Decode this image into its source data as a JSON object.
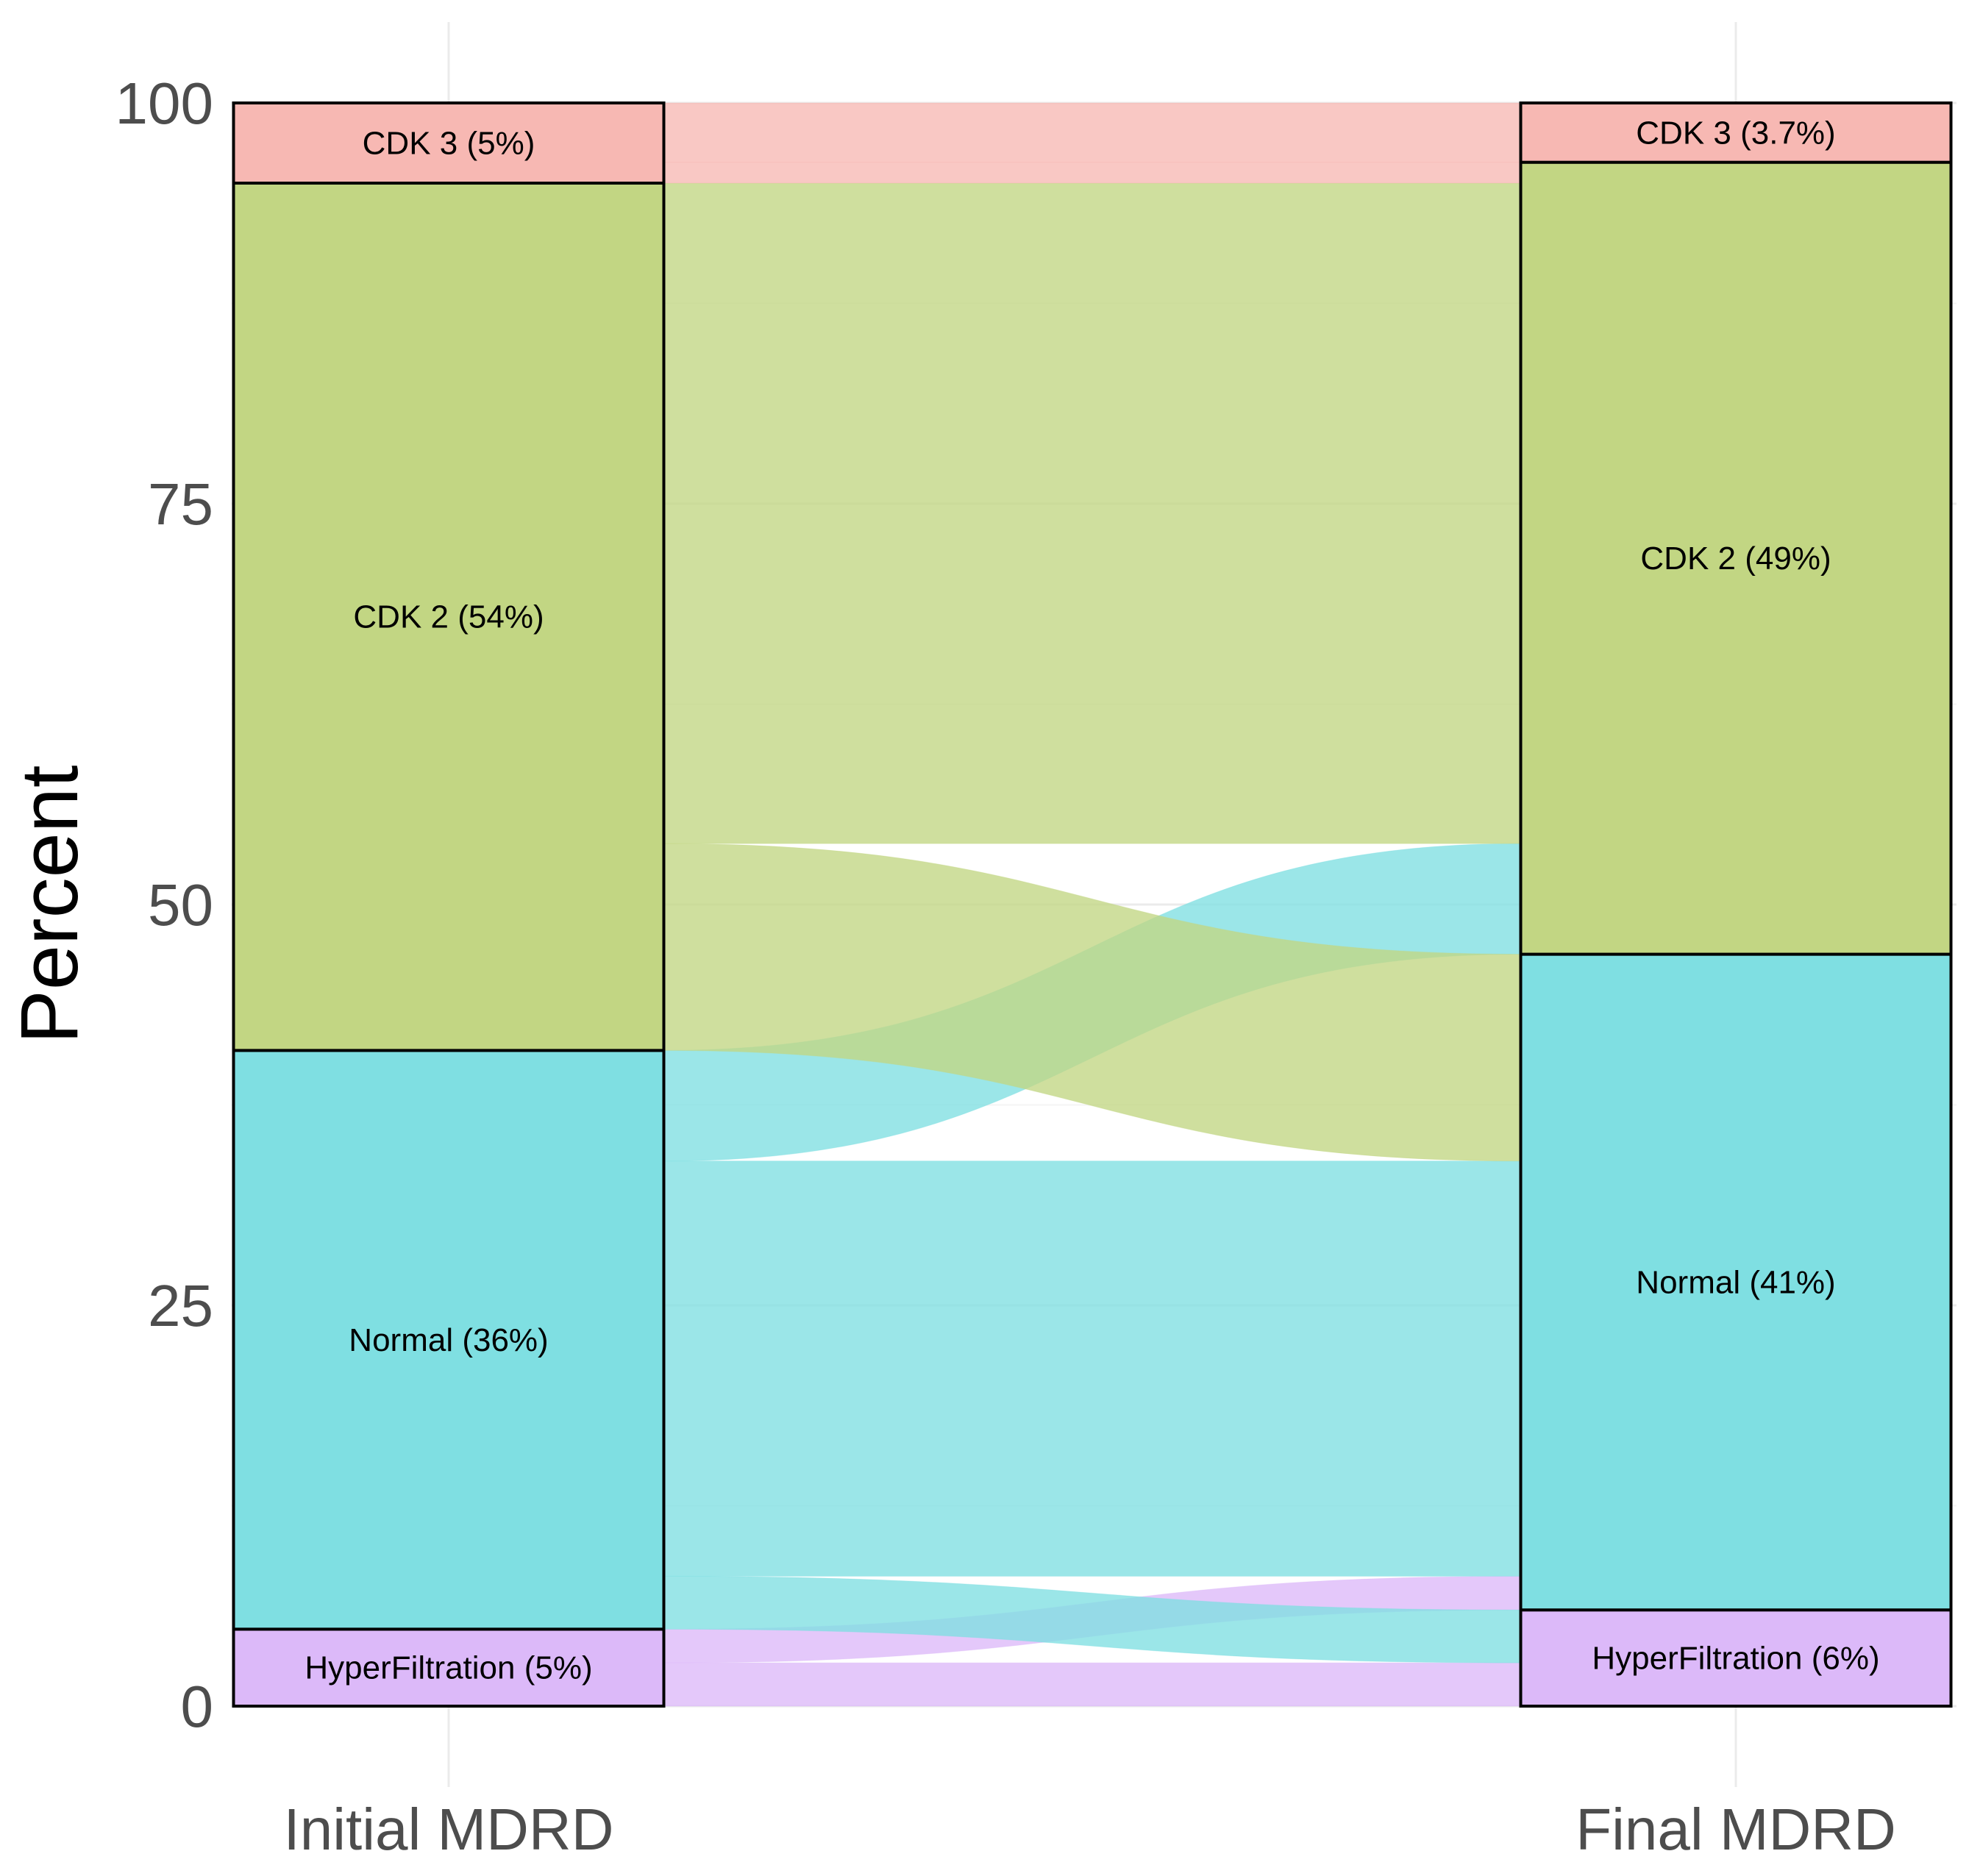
{
  "chart_data": {
    "type": "alluvial",
    "title": "",
    "xlabel": "",
    "ylabel": "Percent",
    "ylim": [
      0,
      100
    ],
    "y_ticks": [
      0,
      25,
      50,
      75,
      100
    ],
    "grid": true,
    "categories": [
      "Initial MDRD",
      "Final MDRD"
    ],
    "axes": [
      {
        "name": "Initial MDRD",
        "strata": [
          {
            "key": "hyper",
            "label": "HyperFiltration (5%)",
            "value": 4.8
          },
          {
            "key": "normal",
            "label": "Normal (36%)",
            "value": 36.1
          },
          {
            "key": "cdk2",
            "label": "CDK 2 (54%)",
            "value": 54.1
          },
          {
            "key": "cdk3",
            "label": "CDK 3 (5%)",
            "value": 5.0
          }
        ]
      },
      {
        "name": "Final MDRD",
        "strata": [
          {
            "key": "hyper",
            "label": "HyperFiltration (6%)",
            "value": 6.0
          },
          {
            "key": "normal",
            "label": "Normal (41%)",
            "value": 40.9
          },
          {
            "key": "cdk2",
            "label": "CDK 2 (49%)",
            "value": 49.4
          },
          {
            "key": "cdk3",
            "label": "CDK 3 (3.7%)",
            "value": 3.7
          }
        ]
      }
    ],
    "flows": [
      {
        "from": "hyper",
        "to": "hyper",
        "value": 2.7
      },
      {
        "from": "hyper",
        "to": "normal",
        "value": 2.1
      },
      {
        "from": "normal",
        "to": "hyper",
        "value": 3.3
      },
      {
        "from": "normal",
        "to": "normal",
        "value": 25.9
      },
      {
        "from": "normal",
        "to": "cdk2",
        "value": 6.9
      },
      {
        "from": "cdk2",
        "to": "normal",
        "value": 12.9
      },
      {
        "from": "cdk2",
        "to": "cdk2",
        "value": 41.2
      },
      {
        "from": "cdk3",
        "to": "cdk2",
        "value": 1.3
      },
      {
        "from": "cdk3",
        "to": "cdk3",
        "value": 3.7
      }
    ],
    "colors": {
      "hyper": "#dcb9f9",
      "normal": "#7fdfe2",
      "cdk2": "#c2d683",
      "cdk3": "#f7b8b3"
    }
  }
}
